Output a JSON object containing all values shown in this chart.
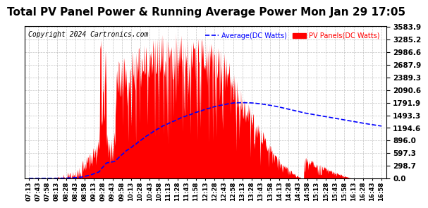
{
  "title": "Total PV Panel Power & Running Average Power Mon Jan 29 17:05",
  "copyright": "Copyright 2024 Cartronics.com",
  "ylabel_right_ticks": [
    0.0,
    298.7,
    597.3,
    896.0,
    1194.6,
    1493.3,
    1791.9,
    2090.6,
    2389.3,
    2687.9,
    2986.6,
    3285.2,
    3583.9
  ],
  "ymax": 3583.9,
  "ymin": 0.0,
  "legend_average": "Average(DC Watts)",
  "legend_pv": "PV Panels(DC Watts)",
  "bg_color": "#ffffff",
  "grid_color": "#aaaaaa",
  "pv_color": "#ff0000",
  "avg_color": "#0000ff",
  "title_fontsize": 11,
  "copyright_fontsize": 7,
  "x_tick_labels": [
    "07:13",
    "07:43",
    "07:58",
    "08:13",
    "08:28",
    "08:43",
    "08:58",
    "09:13",
    "09:28",
    "09:43",
    "09:58",
    "10:13",
    "10:28",
    "10:43",
    "10:58",
    "11:13",
    "11:28",
    "11:43",
    "11:58",
    "12:13",
    "12:28",
    "12:43",
    "12:58",
    "13:13",
    "13:28",
    "13:43",
    "13:58",
    "14:13",
    "14:28",
    "14:43",
    "14:58",
    "15:13",
    "15:28",
    "15:43",
    "15:58",
    "16:13",
    "16:28",
    "16:43",
    "16:58"
  ]
}
